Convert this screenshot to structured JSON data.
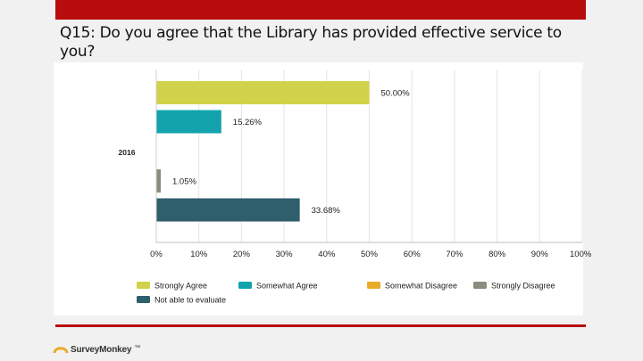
{
  "slide": {
    "title": "Q15: Do you agree that the Library has provided effective service to you?"
  },
  "branding": {
    "name": "SurveyMonkey",
    "mark": "™",
    "icon": "surveymonkey-logo-icon"
  },
  "colors": {
    "accent_red": "#b80d0d"
  },
  "chart_data": {
    "type": "bar",
    "orientation": "horizontal",
    "categories": [
      "2016"
    ],
    "series": [
      {
        "name": "Strongly Agree",
        "values": [
          50.0
        ],
        "label": "50.00%",
        "color": "#d2d24a"
      },
      {
        "name": "Somewhat Agree",
        "values": [
          15.26
        ],
        "label": "15.26%",
        "color": "#12a3ad"
      },
      {
        "name": "Somewhat Disagree",
        "values": [
          0
        ],
        "label": "",
        "color": "#e8ac28"
      },
      {
        "name": "Strongly Disagree",
        "values": [
          1.05
        ],
        "label": "1.05%",
        "color": "#8c8c7e"
      },
      {
        "name": "Not able to evaluate",
        "values": [
          33.68
        ],
        "label": "33.68%",
        "color": "#2f5e6c"
      }
    ],
    "xlim": [
      0,
      100
    ],
    "x_ticks": [
      "0%",
      "10%",
      "20%",
      "30%",
      "40%",
      "50%",
      "60%",
      "70%",
      "80%",
      "90%",
      "100%"
    ],
    "grid": true,
    "legend_position": "bottom",
    "title": "",
    "xlabel": "",
    "ylabel": ""
  }
}
